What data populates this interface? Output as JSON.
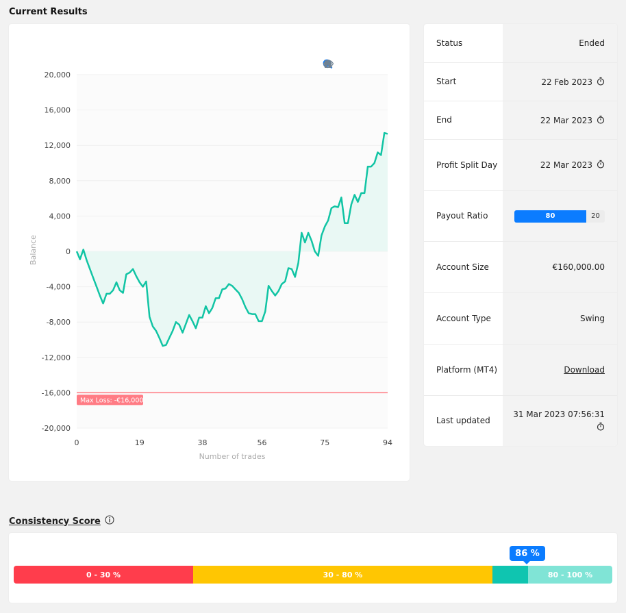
{
  "header": {
    "title": "Current Results"
  },
  "chart_data": {
    "type": "line",
    "title": "",
    "xlabel": "Number of trades",
    "ylabel": "Balance",
    "xlim": [
      0,
      94
    ],
    "ylim": [
      -20000,
      20000
    ],
    "x_ticks": [
      0,
      19,
      38,
      56,
      75,
      94
    ],
    "y_ticks": [
      20000,
      16000,
      12000,
      8000,
      4000,
      0,
      -4000,
      -8000,
      -12000,
      -16000,
      -20000
    ],
    "y_tick_labels": [
      "20,000",
      "16,000",
      "12,000",
      "8,000",
      "4,000",
      "0",
      "-4,000",
      "-8,000",
      "-12,000",
      "-16,000",
      "-20,000"
    ],
    "x_tick_labels": [
      "0",
      "19",
      "38",
      "56",
      "75",
      "94"
    ],
    "annotation": {
      "label": "Max Loss: -€16,000",
      "y": -16000
    },
    "series": [
      {
        "x": [
          0,
          1,
          2,
          3,
          4,
          5,
          6,
          7,
          8,
          9,
          10,
          11,
          12,
          13,
          14,
          15,
          16,
          17,
          18,
          19,
          20,
          21,
          22,
          23,
          24,
          25,
          26,
          27,
          28,
          29,
          30,
          31,
          32,
          33,
          34,
          35,
          36,
          37,
          38,
          39,
          40,
          41,
          42,
          43,
          44,
          45,
          46,
          47,
          48,
          49,
          50,
          51,
          52,
          53,
          54,
          55,
          56,
          57,
          58,
          59,
          60,
          61,
          62,
          63,
          64,
          65,
          66,
          67,
          68,
          69,
          70,
          71,
          72,
          73,
          74,
          75,
          76,
          77,
          78,
          79,
          80,
          81,
          82,
          83,
          84,
          85,
          86,
          87,
          88,
          89,
          90,
          91,
          92,
          93,
          94
        ],
        "y": [
          0,
          -900,
          200,
          -1000,
          -2000,
          -3000,
          -4000,
          -5000,
          -5900,
          -4800,
          -4800,
          -4400,
          -3500,
          -4400,
          -4700,
          -2600,
          -2400,
          -2000,
          -2800,
          -3500,
          -4000,
          -3400,
          -7400,
          -8500,
          -9000,
          -9800,
          -10700,
          -10600,
          -9800,
          -9000,
          -8000,
          -8300,
          -9200,
          -8200,
          -7200,
          -7900,
          -8700,
          -7500,
          -7500,
          -6200,
          -7000,
          -6400,
          -5300,
          -5300,
          -4300,
          -4200,
          -3700,
          -3900,
          -4300,
          -4700,
          -5400,
          -6300,
          -7000,
          -7100,
          -7100,
          -7900,
          -7900,
          -6800,
          -3900,
          -4500,
          -5000,
          -4500,
          -3700,
          -3400,
          -1900,
          -2000,
          -2900,
          -1300,
          2100,
          1000,
          2100,
          1200,
          0,
          -500,
          1800,
          2800,
          3500,
          4900,
          5100,
          5000,
          6100,
          3200,
          3200,
          5300,
          6400,
          5600,
          6600,
          6600,
          9600,
          9600,
          10000,
          11200,
          10900,
          13400,
          13300
        ]
      }
    ],
    "colors": {
      "line": "#11c4a4",
      "area": "#e9f8f4",
      "max_loss": "#ff7b84",
      "grid": "#f0f0f0"
    }
  },
  "toolbar": {
    "icons": [
      "zoom-in-icon",
      "zoom-out-icon",
      "selection-zoom-icon",
      "home-icon",
      "hide-icon"
    ]
  },
  "info": {
    "status_label": "Status",
    "status_value": "Ended",
    "start_label": "Start",
    "start_value": "22 Feb 2023",
    "end_label": "End",
    "end_value": "22 Mar 2023",
    "profit_split_label": "Profit Split Day",
    "profit_split_value": "22 Mar 2023",
    "payout_label": "Payout Ratio",
    "payout_main": "80",
    "payout_rest": "20",
    "payout_fraction": 0.8,
    "account_size_label": "Account Size",
    "account_size_value": "€160,000.00",
    "account_type_label": "Account Type",
    "account_type_value": "Swing",
    "platform_label": "Platform (MT4)",
    "platform_value": "Download",
    "last_updated_label": "Last updated",
    "last_updated_value": "31 Mar 2023 07:56:31"
  },
  "consistency": {
    "title": "Consistency Score",
    "score_label": "86 %",
    "score_value": 86,
    "segments": [
      {
        "label": "0 - 30 %",
        "color": "#ff3d4c"
      },
      {
        "label": "30 - 80 %",
        "color": "#ffc602"
      },
      {
        "label": "",
        "color": "#0fc5b0"
      },
      {
        "label": "80 - 100 %",
        "color": "#80e4d6"
      }
    ]
  }
}
